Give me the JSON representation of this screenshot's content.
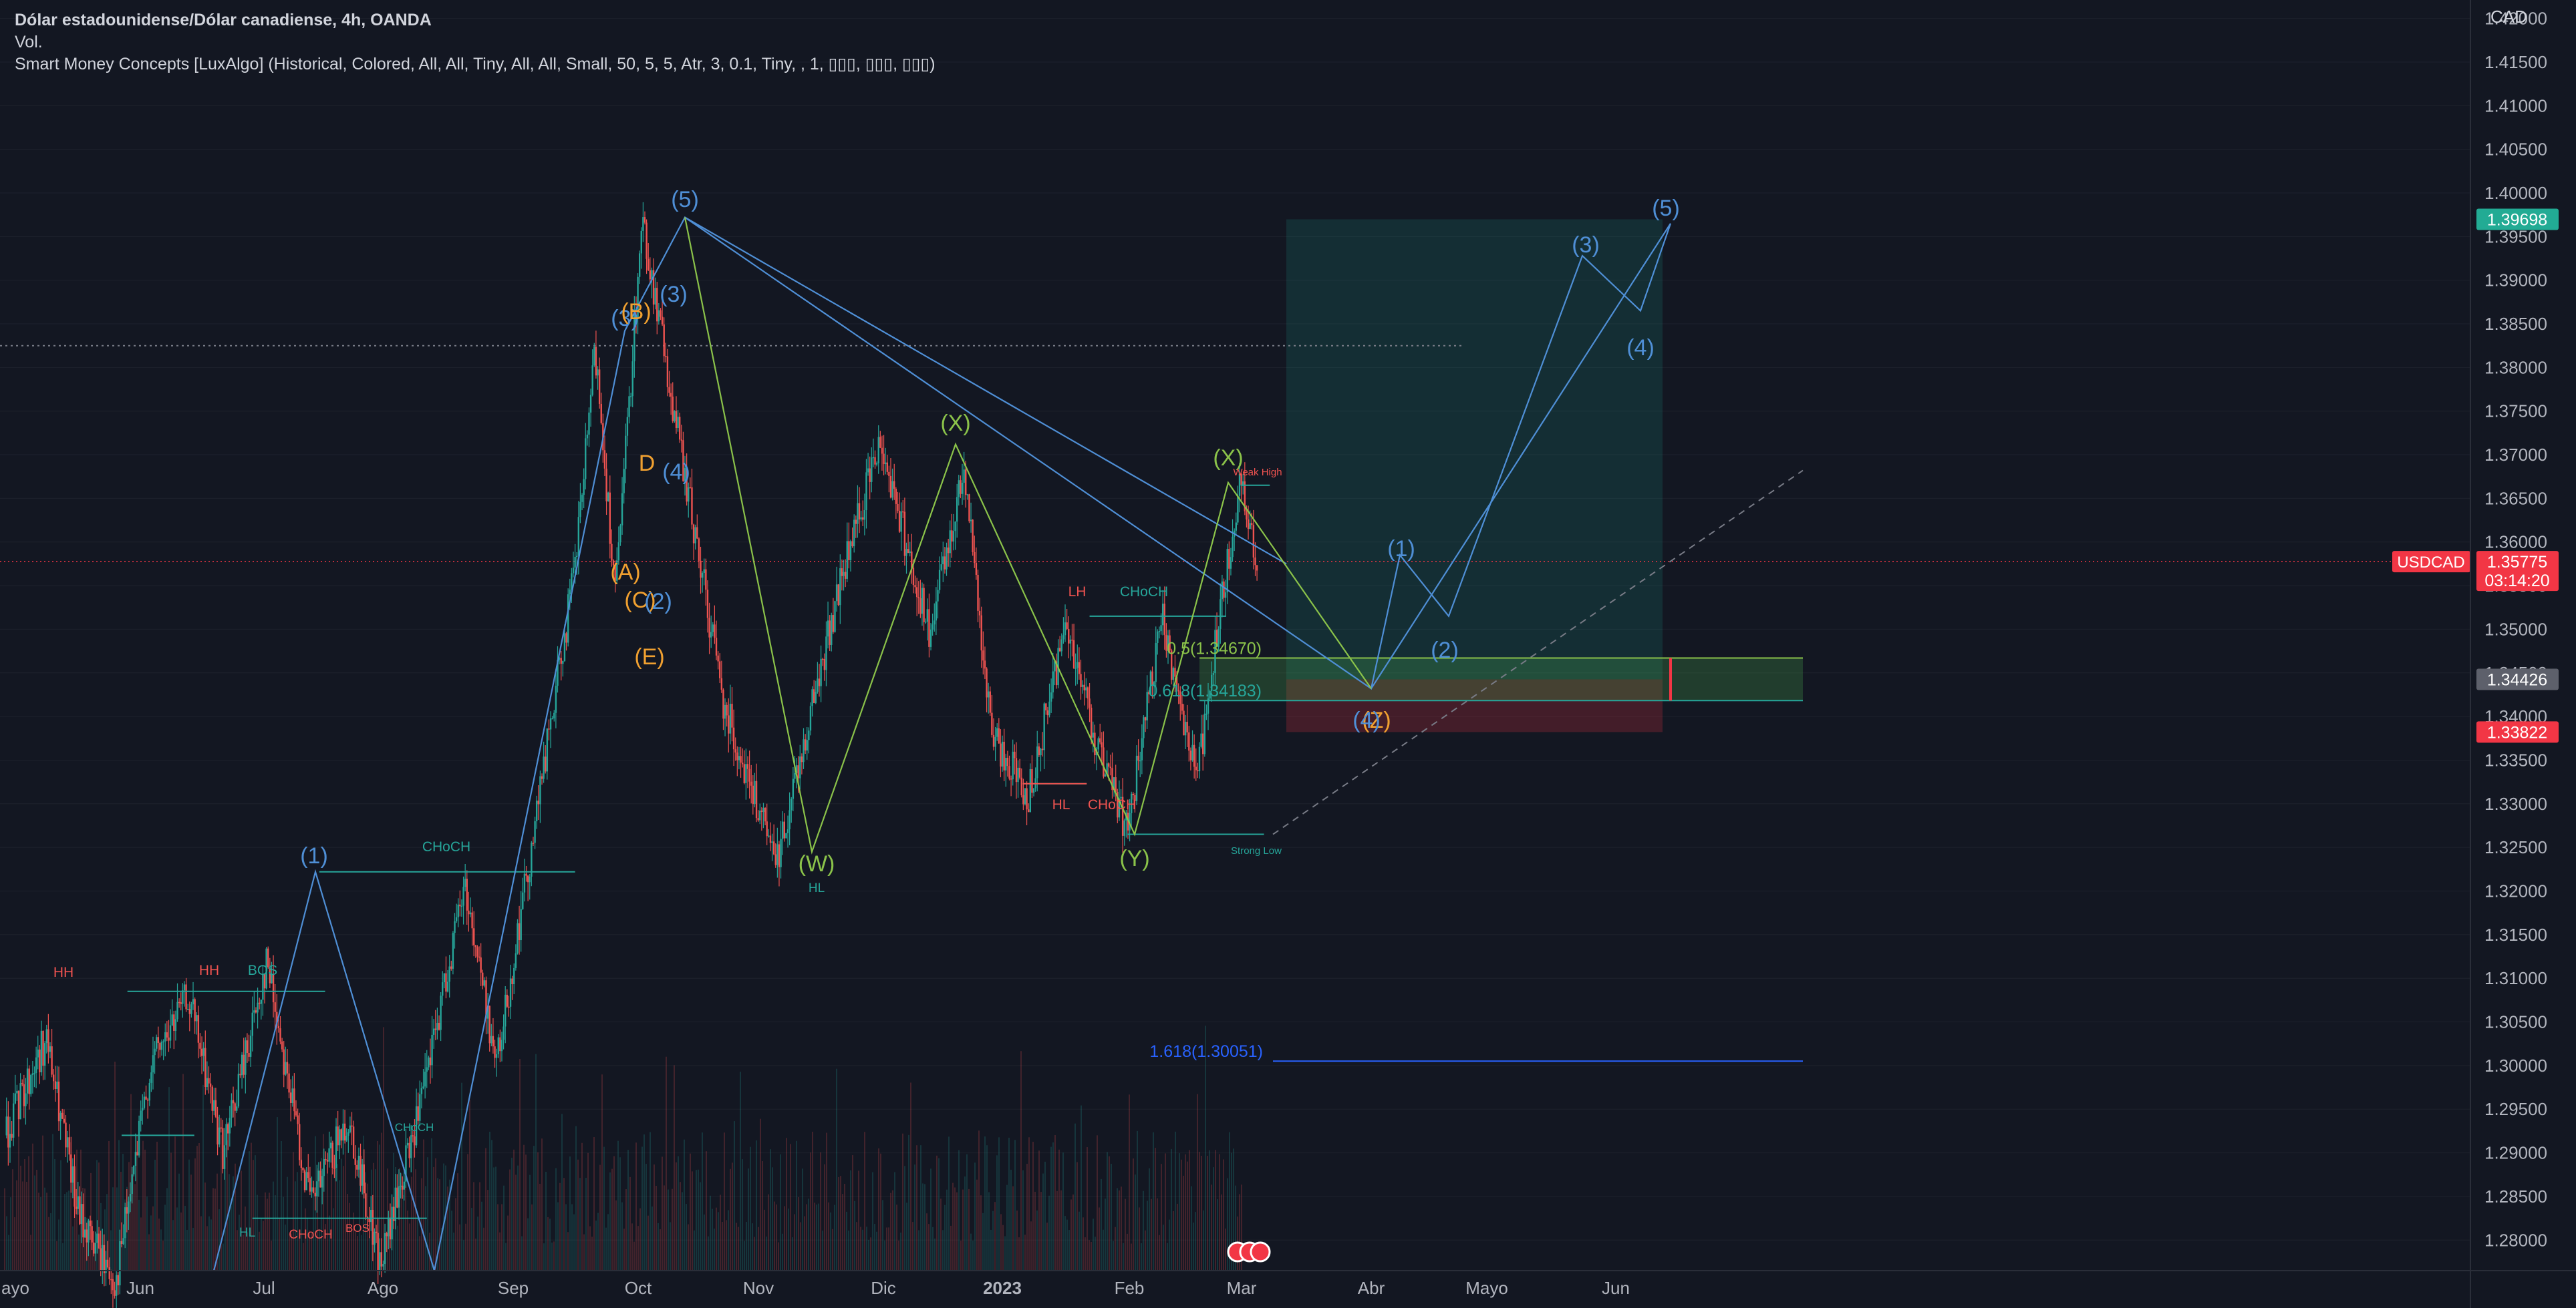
{
  "header": {
    "symbol_title": "Dólar estadounidense/Dólar canadiense, 4h, OANDA",
    "vol_label": "Vol.",
    "indicator_label": "Smart Money Concepts [LuxAlgo] (Historical, Colored, All, All, Tiny, All, All, Small, 50, 5, 5, Atr, 3, 0.1, Tiny, , 1, ▯▯▯, ▯▯▯, ▯▯▯)",
    "currency": "CAD"
  },
  "colors": {
    "background": "#131722",
    "up": "#26a69a",
    "down": "#ef5350",
    "wave_blue": "#4f8fd6",
    "wave_orange": "#f0a030",
    "wave_green": "#8bc34a",
    "price_red": "#f23645",
    "target_green": "#22ab94",
    "fib_blue": "#2962ff"
  },
  "chart_data": {
    "type": "candlestick",
    "symbol": "USDCAD",
    "timeframe": "4h",
    "x_ticks": [
      "ayo",
      "Jun",
      "Jul",
      "Ago",
      "Sep",
      "Oct",
      "Nov",
      "Dic",
      "2023",
      "Feb",
      "Mar",
      "Abr",
      "Mayo",
      "Jun"
    ],
    "y_ticks": [
      "1.42000",
      "1.41500",
      "1.41000",
      "1.40500",
      "1.40000",
      "1.39500",
      "1.39000",
      "1.38500",
      "1.38000",
      "1.37500",
      "1.37000",
      "1.36500",
      "1.36000",
      "1.35500",
      "1.35000",
      "1.34500",
      "1.34000",
      "1.33500",
      "1.33000",
      "1.32500",
      "1.32000",
      "1.31500",
      "1.31000",
      "1.30500",
      "1.30000",
      "1.29500",
      "1.29000",
      "1.28500",
      "1.28000"
    ],
    "ylim": [
      1.2765,
      1.4215
    ],
    "price_path": [
      {
        "d": 0,
        "p": 1.292
      },
      {
        "d": 14,
        "p": 1.303
      },
      {
        "d": 25,
        "p": 1.283
      },
      {
        "d": 38,
        "p": 1.275
      },
      {
        "d": 50,
        "p": 1.3
      },
      {
        "d": 63,
        "p": 1.308
      },
      {
        "d": 75,
        "p": 1.29
      },
      {
        "d": 90,
        "p": 1.312
      },
      {
        "d": 105,
        "p": 1.284
      },
      {
        "d": 118,
        "p": 1.294
      },
      {
        "d": 129,
        "p": 1.277
      },
      {
        "d": 144,
        "p": 1.297
      },
      {
        "d": 158,
        "p": 1.321
      },
      {
        "d": 169,
        "p": 1.3
      },
      {
        "d": 180,
        "p": 1.323
      },
      {
        "d": 196,
        "p": 1.357
      },
      {
        "d": 203,
        "p": 1.382
      },
      {
        "d": 210,
        "p": 1.354
      },
      {
        "d": 219,
        "p": 1.397
      },
      {
        "d": 232,
        "p": 1.371
      },
      {
        "d": 247,
        "p": 1.342
      },
      {
        "d": 265,
        "p": 1.323
      },
      {
        "d": 287,
        "p": 1.355
      },
      {
        "d": 301,
        "p": 1.372
      },
      {
        "d": 318,
        "p": 1.349
      },
      {
        "d": 330,
        "p": 1.369
      },
      {
        "d": 339,
        "p": 1.338
      },
      {
        "d": 352,
        "p": 1.331
      },
      {
        "d": 365,
        "p": 1.351
      },
      {
        "d": 376,
        "p": 1.336
      },
      {
        "d": 386,
        "p": 1.327
      },
      {
        "d": 398,
        "p": 1.351
      },
      {
        "d": 410,
        "p": 1.333
      },
      {
        "d": 418,
        "p": 1.352
      },
      {
        "d": 425,
        "p": 1.367
      },
      {
        "d": 431,
        "p": 1.358
      }
    ],
    "current_price": {
      "label": "USDCAD",
      "value": "1.35775",
      "countdown": "03:14:20"
    },
    "price_tags": [
      {
        "value": "1.39698",
        "kind": "target"
      },
      {
        "value": "1.34426",
        "kind": "entry"
      },
      {
        "value": "1.33822",
        "kind": "stop"
      }
    ],
    "fib_labels": [
      {
        "text": "0.5(1.34670)",
        "price": 1.3467
      },
      {
        "text": "0.618(1.34183)",
        "price": 1.34183
      },
      {
        "text": "1.618(1.30051)",
        "price": 1.30051
      }
    ],
    "structure_labels": [
      "HH",
      "HH",
      "BOS",
      "CHoCH",
      "HL",
      "CHoCH",
      "BOS",
      "CHoCH",
      "HL",
      "LH",
      "CHoCH",
      "HL",
      "CHoCH",
      "Weak High",
      "Strong Low"
    ],
    "wave_labels": [
      "(1)",
      "(3)",
      "(B)",
      "(5)",
      "(3)",
      "D",
      "(A)",
      "(C)",
      "(2)",
      "(4)",
      "(E)",
      "(X)",
      "(W)",
      "(Y)",
      "(X)",
      "(Z)",
      "(1)",
      "(2)",
      "(3)",
      "(4)",
      "(5)",
      "(4)"
    ]
  }
}
